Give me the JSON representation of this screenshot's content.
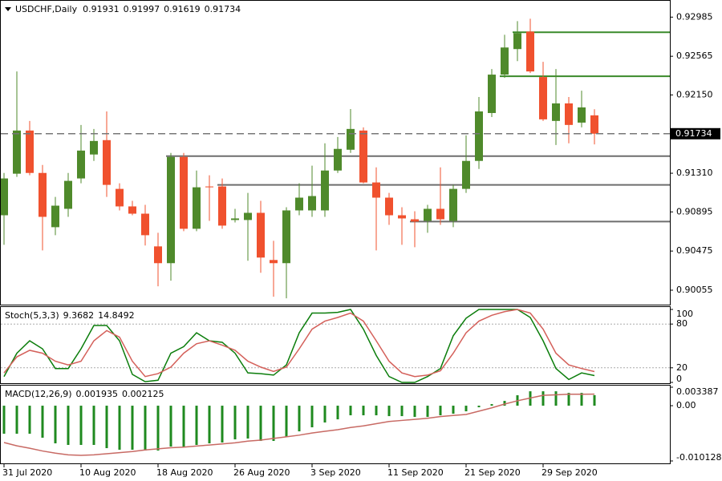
{
  "chart_data": [
    {
      "type": "candlestick",
      "title": "USDCHF,Daily",
      "categories": [
        "31 Jul 2020",
        null,
        null,
        null,
        null,
        null,
        "10 Aug 2020",
        null,
        null,
        null,
        null,
        null,
        "18 Aug 2020",
        null,
        null,
        null,
        null,
        null,
        "26 Aug 2020",
        null,
        null,
        null,
        null,
        null,
        "3 Sep 2020",
        null,
        null,
        null,
        null,
        null,
        "11 Sep 2020",
        null,
        null,
        null,
        null,
        null,
        "21 Sep 2020",
        null,
        null,
        null,
        null,
        null,
        "29 Sep 2020",
        null,
        null,
        null,
        null
      ],
      "open": [
        0.90859,
        0.91305,
        0.91768,
        0.91313,
        0.90731,
        0.90928,
        0.91254,
        0.91511,
        0.91665,
        0.91142,
        0.90954,
        0.90876,
        0.90525,
        0.90345,
        0.91485,
        0.90714,
        0.91168,
        0.91168,
        0.90808,
        0.90808,
        0.90885,
        0.90379,
        0.90345,
        0.90911,
        0.90911,
        0.90911,
        0.91339,
        0.91562,
        0.91768,
        0.91211,
        0.91048,
        0.90859,
        0.90816,
        0.90799,
        0.90928,
        0.90799,
        0.91142,
        0.91442,
        0.91956,
        0.92368,
        0.92642,
        0.9283,
        0.92342,
        0.91871,
        0.92059,
        0.91853,
        0.91931
      ],
      "high": [
        0.91313,
        0.92402,
        0.91871,
        0.91399,
        0.91056,
        0.91313,
        0.91828,
        0.91785,
        0.91973,
        0.91202,
        0.91014,
        0.90971,
        0.90671,
        0.91528,
        0.91528,
        0.91339,
        0.91288,
        0.91254,
        0.90928,
        0.91099,
        0.91014,
        0.90585,
        0.90945,
        0.91202,
        0.91391,
        0.91631,
        0.91699,
        0.91999,
        0.91802,
        0.91373,
        0.91099,
        0.90945,
        0.90902,
        0.90971,
        0.91373,
        0.91185,
        0.91716,
        0.92128,
        0.92428,
        0.92796,
        0.92942,
        0.92968,
        0.92505,
        0.92428,
        0.92128,
        0.92196,
        0.91997
      ],
      "low": [
        0.90542,
        0.91271,
        0.91288,
        0.90482,
        0.90645,
        0.90842,
        0.91202,
        0.91442,
        0.91056,
        0.90911,
        0.90859,
        0.90534,
        0.90097,
        0.90157,
        0.90688,
        0.90688,
        0.90799,
        0.90714,
        0.90782,
        0.90371,
        0.90242,
        0.89985,
        0.89968,
        0.90859,
        0.90842,
        0.90842,
        0.91313,
        0.91528,
        0.91202,
        0.90482,
        0.90756,
        0.90542,
        0.90516,
        0.90671,
        0.90756,
        0.90731,
        0.91099,
        0.91356,
        0.91913,
        0.92333,
        0.92513,
        0.92385,
        0.91871,
        0.91613,
        0.91631,
        0.91802,
        0.91619
      ],
      "close": [
        0.91254,
        0.91768,
        0.91313,
        0.90842,
        0.90962,
        0.91228,
        0.91553,
        0.91656,
        0.91185,
        0.90954,
        0.90876,
        0.90645,
        0.90345,
        0.91485,
        0.90714,
        0.91159,
        0.91159,
        0.90748,
        0.90825,
        0.90885,
        0.90405,
        0.90345,
        0.90911,
        0.91048,
        0.91065,
        0.91339,
        0.91571,
        0.91785,
        0.91211,
        0.91048,
        0.90859,
        0.90825,
        0.90791,
        0.90928,
        0.90816,
        0.91142,
        0.91442,
        0.91973,
        0.92368,
        0.92659,
        0.92813,
        0.92402,
        0.91888,
        0.92059,
        0.91828,
        0.92016,
        0.91734
      ],
      "up_color": "#4f8a2b",
      "down_color": "#f0512e",
      "ylim": [
        0.899,
        0.9316
      ],
      "yticks": [
        0.92985,
        0.92565,
        {
          "value": 0.9215,
          "label": "0.92150"
        },
        {
          "value": 0.9131,
          "label": "0.91310"
        },
        0.90895,
        0.90475,
        0.90055
      ],
      "levels": [
        {
          "value": 0.92822,
          "from": 40,
          "color": "#3a8a2a"
        },
        {
          "value": 0.9235,
          "from": 39,
          "color": "#3a8a2a"
        },
        {
          "value": 0.91493,
          "from": 13,
          "color": "#6e6e6e"
        },
        {
          "value": 0.91185,
          "from": 17,
          "color": "#6e6e6e"
        },
        {
          "value": 0.90791,
          "from": 32,
          "color": "#6e6e6e"
        }
      ]
    },
    {
      "type": "line",
      "title": "Stoch(5,3,3)",
      "series": [
        {
          "color": "#0b7d0b",
          "values": [
            8,
            40,
            57,
            46,
            19,
            19,
            46,
            78,
            78,
            57,
            11,
            1,
            3,
            40,
            49,
            68,
            57,
            55,
            40,
            13,
            12,
            10,
            24,
            68,
            95,
            95,
            96,
            100,
            73,
            37,
            8,
            0,
            0,
            8,
            19,
            64,
            88,
            100,
            100,
            100,
            100,
            89,
            57,
            19,
            4,
            13,
            9.3682
          ]
        },
        {
          "color": "#d4605a",
          "values": [
            13,
            35,
            44,
            40,
            29,
            24,
            29,
            57,
            71,
            62,
            29,
            8,
            12,
            21,
            40,
            53,
            57,
            51,
            44,
            29,
            21,
            15,
            21,
            46,
            73,
            84,
            89,
            95,
            84,
            57,
            29,
            13,
            8,
            10,
            16,
            40,
            68,
            84,
            92,
            97,
            100,
            95,
            73,
            40,
            24,
            19,
            14.8492
          ]
        }
      ],
      "ylim": [
        0,
        100
      ],
      "yticks": [
        100,
        80,
        20,
        0
      ]
    },
    {
      "type": "combo",
      "title": "MACD(12,26,9)",
      "series": [
        {
          "kind": "bar",
          "color": "#1f8a1f",
          "values": [
            -0.00514,
            -0.00514,
            -0.00514,
            -0.00587,
            -0.0069,
            -0.00719,
            -0.00719,
            -0.00719,
            -0.00778,
            -0.00807,
            -0.00807,
            -0.00822,
            -0.00822,
            -0.00749,
            -0.00763,
            -0.00719,
            -0.0069,
            -0.00675,
            -0.00617,
            -0.00602,
            -0.00646,
            -0.00646,
            -0.00572,
            -0.0047,
            -0.00396,
            -0.00308,
            -0.0025,
            -0.00176,
            -0.00176,
            -0.00176,
            -0.00191,
            -0.00191,
            -0.00206,
            -0.00206,
            -0.00176,
            -0.00147,
            -0.00103,
            -0.00029,
            0.00029,
            0.00088,
            0.00191,
            0.00264,
            0.00264,
            0.00264,
            0.00235,
            0.00235,
            0.001935
          ]
        },
        {
          "kind": "line",
          "color": "#c86a64",
          "values": [
            -0.00675,
            -0.00735,
            -0.0078,
            -0.0083,
            -0.0087,
            -0.009,
            -0.0091,
            -0.009,
            -0.0088,
            -0.0086,
            -0.0084,
            -0.0081,
            -0.0079,
            -0.0077,
            -0.0076,
            -0.0074,
            -0.0072,
            -0.007,
            -0.0068,
            -0.0065,
            -0.0063,
            -0.006,
            -0.0057,
            -0.0054,
            -0.005,
            -0.0047,
            -0.0044,
            -0.004,
            -0.0037,
            -0.0033,
            -0.0029,
            -0.0027,
            -0.0025,
            -0.0023,
            -0.002,
            -0.0018,
            -0.0016,
            -0.001,
            -0.0004,
            0.0003,
            0.0009,
            0.0014,
            0.0019,
            0.002,
            0.0021,
            0.0021,
            0.002125
          ]
        }
      ],
      "ylim": [
        -0.010128,
        0.003387
      ],
      "yticks": [
        0.003387,
        {
          "value": 0,
          "label": "0.00"
        },
        -0.010128
      ]
    }
  ]
}
